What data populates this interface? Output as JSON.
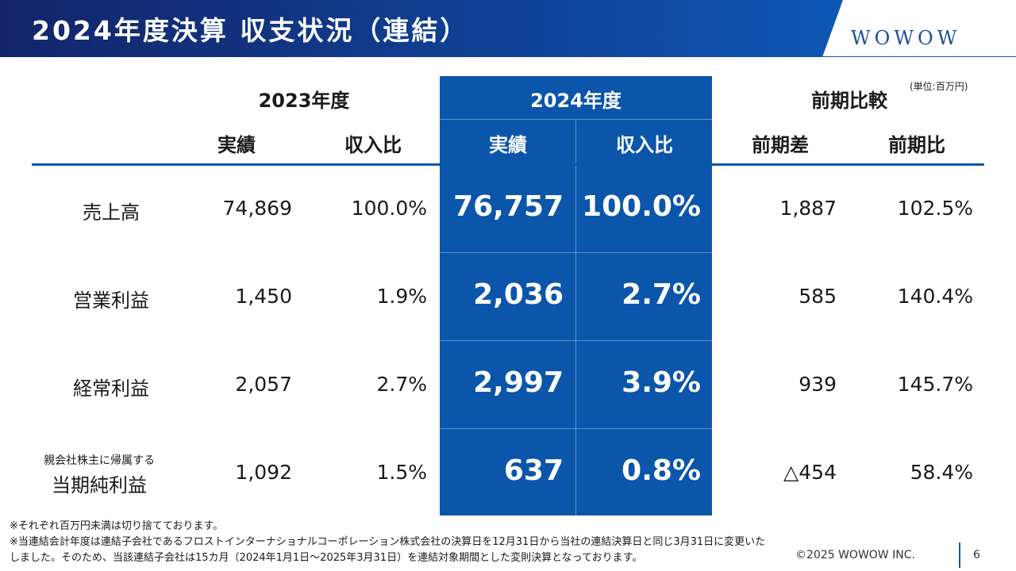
{
  "header": {
    "title": "2024年度決算 収支状況（連結）",
    "logo": "WOWOW"
  },
  "unit": "(単位:百万円)",
  "columns": {
    "group_2023": "2023年度",
    "group_2024": "2024年度",
    "group_compare": "前期比較",
    "actual_2023": "実績",
    "ratio_2023": "収入比",
    "actual_2024": "実績",
    "ratio_2024": "収入比",
    "diff": "前期差",
    "yoy": "前期比"
  },
  "rows": [
    {
      "label": "売上高",
      "actual_2023": "74,869",
      "ratio_2023": "100.0%",
      "actual_2024": "76,757",
      "ratio_2024": "100.0%",
      "diff": "1,887",
      "yoy": "102.5%"
    },
    {
      "label": "営業利益",
      "actual_2023": "1,450",
      "ratio_2023": "1.9%",
      "actual_2024": "2,036",
      "ratio_2024": "2.7%",
      "diff": "585",
      "yoy": "140.4%"
    },
    {
      "label": "経常利益",
      "actual_2023": "2,057",
      "ratio_2023": "2.7%",
      "actual_2024": "2,997",
      "ratio_2024": "3.9%",
      "diff": "939",
      "yoy": "145.7%"
    },
    {
      "label_small": "親会社株主に帰属する",
      "label": "当期純利益",
      "actual_2023": "1,092",
      "ratio_2023": "1.5%",
      "actual_2024": "637",
      "ratio_2024": "0.8%",
      "diff": "△454",
      "yoy": "58.4%"
    }
  ],
  "notes": [
    "※それぞれ百万円未満は切り捨てております。",
    "※当連結会計年度は連結子会社であるフロストインターナショナルコーポレーション株式会社の決算日を12月31日から当社の連結決算日と同じ3月31日に変更いた",
    "しました。そのため、当該連結子会社は15カ月（2024年1月1日～2025年3月31日）を連結対象期間とした変則決算となっております。"
  ],
  "footer": {
    "copyright": "©2025 WOWOW INC.",
    "page": "6"
  },
  "colors": {
    "banner_dark": "#13246a",
    "banner_light": "#0e56b4",
    "highlight": "#0b56aa"
  }
}
